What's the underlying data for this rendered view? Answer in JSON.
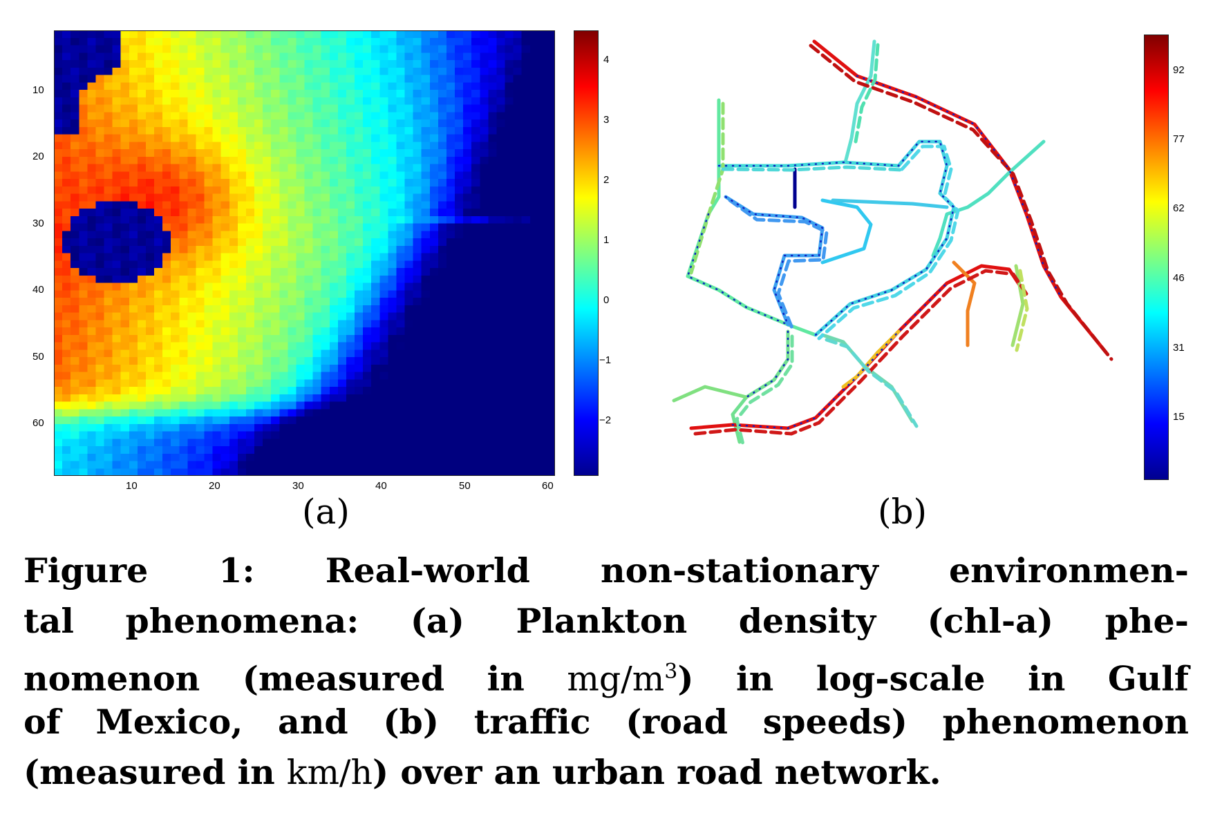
{
  "panel_a": {
    "sublabel": "(a)",
    "y_ticks": [
      "10",
      "20",
      "30",
      "40",
      "50",
      "60"
    ],
    "x_ticks": [
      "10",
      "20",
      "30",
      "40",
      "50",
      "60"
    ],
    "colorbar_ticks": [
      "4",
      "3",
      "2",
      "1",
      "0",
      "−1",
      "−2"
    ]
  },
  "panel_b": {
    "sublabel": "(b)",
    "colorbar_ticks": [
      "92",
      "77",
      "62",
      "46",
      "31",
      "15"
    ]
  },
  "caption": {
    "line1": "Figure 1:  Real-world non-stationary environmen-",
    "line2": "tal phenomena: (a) Plankton density (chl-a) phe-",
    "line3_pre": "nomenon (measured in ",
    "line3_unit": "mg/m",
    "line3_sup": "3",
    "line3_post": ") in log-scale in Gulf",
    "line4": "of Mexico, and (b) traffic (road speeds) phenomenon",
    "line5_pre": "(measured in ",
    "line5_unit": "km/h",
    "line5_post": ") over an urban road network."
  },
  "colors": {
    "jet": [
      "#00008f",
      "#0000ff",
      "#0080ff",
      "#00ffff",
      "#80ff80",
      "#ffff00",
      "#ff8000",
      "#ff0000",
      "#800000"
    ]
  }
}
